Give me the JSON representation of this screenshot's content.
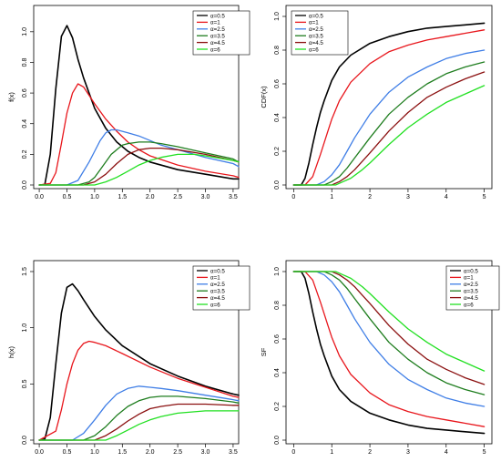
{
  "colors": {
    "black": "#000000",
    "red": "#e8161c",
    "blue": "#3f7ee6",
    "darkgreen": "#1e7d1e",
    "darkred": "#8b1010",
    "green": "#22e022"
  },
  "legend_entries": [
    {
      "label": "α=0.5",
      "color": "#000000"
    },
    {
      "label": "α=1",
      "color": "#e8161c"
    },
    {
      "label": "α=2.5",
      "color": "#3f7ee6"
    },
    {
      "label": "α=3.5",
      "color": "#1e7d1e"
    },
    {
      "label": "α=4.5",
      "color": "#8b1010"
    },
    {
      "label": "α=6",
      "color": "#22e022"
    }
  ],
  "chart_data": [
    {
      "type": "line",
      "title": "",
      "xlabel": "",
      "ylabel": "f(x)",
      "xlim": [
        -0.1,
        3.6
      ],
      "ylim": [
        0,
        1.1
      ],
      "xticks": [
        "0.0",
        "0.5",
        "1.0",
        "1.5",
        "2.0",
        "2.5",
        "3.0",
        "3.5"
      ],
      "yticks": [
        "0.0",
        "0.2",
        "0.4",
        "0.6",
        "0.8",
        "1.0"
      ],
      "legend": "top-right",
      "grid": false,
      "series": [
        {
          "name": "α=0.5",
          "color": "#000000",
          "x": [
            0,
            0.1,
            0.2,
            0.3,
            0.4,
            0.5,
            0.6,
            0.7,
            0.8,
            1.0,
            1.2,
            1.4,
            1.6,
            1.8,
            2.0,
            2.5,
            3.0,
            3.5,
            3.6
          ],
          "y": [
            0,
            0.003,
            0.2,
            0.63,
            0.97,
            1.04,
            0.96,
            0.82,
            0.7,
            0.5,
            0.37,
            0.28,
            0.22,
            0.18,
            0.15,
            0.1,
            0.07,
            0.04,
            0.04
          ]
        },
        {
          "name": "α=1",
          "color": "#e8161c",
          "x": [
            0,
            0.2,
            0.3,
            0.4,
            0.5,
            0.6,
            0.7,
            0.8,
            1.0,
            1.2,
            1.4,
            1.6,
            1.8,
            2.0,
            2.5,
            3.0,
            3.5,
            3.6
          ],
          "y": [
            0,
            0.01,
            0.08,
            0.27,
            0.47,
            0.6,
            0.66,
            0.64,
            0.53,
            0.43,
            0.35,
            0.28,
            0.23,
            0.19,
            0.13,
            0.09,
            0.06,
            0.05
          ]
        },
        {
          "name": "α=2.5",
          "color": "#3f7ee6",
          "x": [
            0,
            0.5,
            0.7,
            0.9,
            1.0,
            1.1,
            1.2,
            1.3,
            1.4,
            1.5,
            1.6,
            1.8,
            2.0,
            2.2,
            2.5,
            3.0,
            3.5,
            3.6
          ],
          "y": [
            0,
            0.0,
            0.03,
            0.15,
            0.22,
            0.29,
            0.34,
            0.36,
            0.36,
            0.35,
            0.34,
            0.32,
            0.29,
            0.26,
            0.23,
            0.18,
            0.14,
            0.12
          ]
        },
        {
          "name": "α=3.5",
          "color": "#1e7d1e",
          "x": [
            0,
            0.7,
            0.9,
            1.0,
            1.1,
            1.2,
            1.3,
            1.4,
            1.5,
            1.6,
            1.8,
            2.0,
            2.2,
            2.5,
            3.0,
            3.5,
            3.6
          ],
          "y": [
            0,
            0.0,
            0.02,
            0.05,
            0.1,
            0.15,
            0.2,
            0.23,
            0.26,
            0.27,
            0.28,
            0.28,
            0.27,
            0.25,
            0.21,
            0.17,
            0.15
          ]
        },
        {
          "name": "α=4.5",
          "color": "#8b1010",
          "x": [
            0,
            0.8,
            1.0,
            1.2,
            1.4,
            1.6,
            1.8,
            2.0,
            2.2,
            2.5,
            3.0,
            3.5,
            3.6
          ],
          "y": [
            0,
            0.0,
            0.02,
            0.07,
            0.14,
            0.2,
            0.23,
            0.24,
            0.24,
            0.23,
            0.2,
            0.16,
            0.15
          ]
        },
        {
          "name": "α=6",
          "color": "#22e022",
          "x": [
            0,
            1.0,
            1.2,
            1.4,
            1.6,
            1.8,
            2.0,
            2.2,
            2.5,
            2.8,
            3.0,
            3.5,
            3.6
          ],
          "y": [
            0,
            0.0,
            0.02,
            0.05,
            0.09,
            0.13,
            0.16,
            0.18,
            0.2,
            0.2,
            0.19,
            0.16,
            0.15
          ]
        }
      ]
    },
    {
      "type": "line",
      "title": "",
      "xlabel": "",
      "ylabel": "CDF(x)",
      "xlim": [
        -0.2,
        5.2
      ],
      "ylim": [
        0,
        1
      ],
      "xticks": [
        "0",
        "1",
        "2",
        "3",
        "4",
        "5"
      ],
      "yticks": [
        "0.0",
        "0.2",
        "0.4",
        "0.6",
        "0.8",
        "1.0"
      ],
      "legend": "top-left",
      "grid": false,
      "series": [
        {
          "name": "α=0.5",
          "color": "#000000",
          "x": [
            0,
            0.2,
            0.3,
            0.4,
            0.5,
            0.6,
            0.7,
            0.8,
            1.0,
            1.2,
            1.5,
            2.0,
            2.5,
            3.0,
            3.5,
            4.0,
            4.5,
            5.0
          ],
          "y": [
            0,
            0.0,
            0.04,
            0.13,
            0.24,
            0.34,
            0.43,
            0.5,
            0.62,
            0.7,
            0.77,
            0.84,
            0.88,
            0.91,
            0.93,
            0.94,
            0.95,
            0.96
          ]
        },
        {
          "name": "α=1",
          "color": "#e8161c",
          "x": [
            0,
            0.3,
            0.5,
            0.7,
            0.9,
            1.0,
            1.2,
            1.5,
            2.0,
            2.5,
            3.0,
            3.5,
            4.0,
            4.5,
            5.0
          ],
          "y": [
            0,
            0.0,
            0.05,
            0.18,
            0.32,
            0.39,
            0.5,
            0.61,
            0.72,
            0.79,
            0.83,
            0.86,
            0.88,
            0.9,
            0.92
          ]
        },
        {
          "name": "α=2.5",
          "color": "#3f7ee6",
          "x": [
            0,
            0.6,
            0.8,
            1.0,
            1.2,
            1.4,
            1.6,
            1.8,
            2.0,
            2.5,
            3.0,
            3.5,
            4.0,
            4.5,
            5.0
          ],
          "y": [
            0,
            0.0,
            0.02,
            0.06,
            0.12,
            0.2,
            0.28,
            0.35,
            0.42,
            0.55,
            0.64,
            0.7,
            0.75,
            0.78,
            0.8
          ]
        },
        {
          "name": "α=3.5",
          "color": "#1e7d1e",
          "x": [
            0,
            0.8,
            1.0,
            1.2,
            1.4,
            1.6,
            1.8,
            2.0,
            2.5,
            3.0,
            3.5,
            4.0,
            4.5,
            5.0
          ],
          "y": [
            0,
            0.0,
            0.02,
            0.05,
            0.1,
            0.16,
            0.22,
            0.28,
            0.42,
            0.52,
            0.6,
            0.66,
            0.7,
            0.73
          ]
        },
        {
          "name": "α=4.5",
          "color": "#8b1010",
          "x": [
            0,
            1.0,
            1.2,
            1.4,
            1.6,
            1.8,
            2.0,
            2.5,
            3.0,
            3.5,
            4.0,
            4.5,
            5.0
          ],
          "y": [
            0,
            0.0,
            0.02,
            0.05,
            0.09,
            0.14,
            0.19,
            0.32,
            0.43,
            0.52,
            0.58,
            0.63,
            0.67
          ]
        },
        {
          "name": "α=6",
          "color": "#22e022",
          "x": [
            0,
            1.1,
            1.3,
            1.5,
            1.8,
            2.0,
            2.5,
            3.0,
            3.5,
            4.0,
            4.5,
            5.0
          ],
          "y": [
            0,
            0.0,
            0.02,
            0.04,
            0.09,
            0.13,
            0.24,
            0.34,
            0.42,
            0.49,
            0.54,
            0.59
          ]
        }
      ]
    },
    {
      "type": "line",
      "title": "",
      "xlabel": "",
      "ylabel": "h(x)",
      "xlim": [
        -0.1,
        3.6
      ],
      "ylim": [
        0,
        1.5
      ],
      "xticks": [
        "0.0",
        "0.5",
        "1.0",
        "1.5",
        "2.0",
        "2.5",
        "3.0",
        "3.5"
      ],
      "yticks": [
        "0.0",
        "0.5",
        "1.0",
        "1.5"
      ],
      "legend": "top-right",
      "grid": false,
      "series": [
        {
          "name": "α=0.5",
          "color": "#000000",
          "x": [
            0,
            0.1,
            0.2,
            0.3,
            0.4,
            0.5,
            0.6,
            0.7,
            0.8,
            1.0,
            1.2,
            1.5,
            2.0,
            2.5,
            3.0,
            3.5,
            3.6
          ],
          "y": [
            0,
            0.01,
            0.2,
            0.68,
            1.13,
            1.36,
            1.39,
            1.33,
            1.25,
            1.1,
            0.98,
            0.84,
            0.68,
            0.57,
            0.48,
            0.41,
            0.4
          ]
        },
        {
          "name": "α=1",
          "color": "#e8161c",
          "x": [
            0,
            0.3,
            0.4,
            0.5,
            0.6,
            0.7,
            0.8,
            0.9,
            1.0,
            1.2,
            1.5,
            2.0,
            2.5,
            3.0,
            3.5,
            3.6
          ],
          "y": [
            0,
            0.08,
            0.27,
            0.5,
            0.68,
            0.8,
            0.86,
            0.88,
            0.87,
            0.84,
            0.77,
            0.65,
            0.55,
            0.47,
            0.39,
            0.38
          ]
        },
        {
          "name": "α=2.5",
          "color": "#3f7ee6",
          "x": [
            0,
            0.6,
            0.8,
            1.0,
            1.2,
            1.4,
            1.6,
            1.8,
            2.0,
            2.2,
            2.5,
            3.0,
            3.5,
            3.6
          ],
          "y": [
            0,
            0.0,
            0.06,
            0.18,
            0.31,
            0.41,
            0.46,
            0.48,
            0.47,
            0.46,
            0.44,
            0.4,
            0.36,
            0.35
          ]
        },
        {
          "name": "α=3.5",
          "color": "#1e7d1e",
          "x": [
            0,
            0.8,
            1.0,
            1.2,
            1.4,
            1.6,
            1.8,
            2.0,
            2.2,
            2.5,
            3.0,
            3.5,
            3.6
          ],
          "y": [
            0,
            0.0,
            0.04,
            0.12,
            0.22,
            0.3,
            0.35,
            0.38,
            0.39,
            0.39,
            0.37,
            0.34,
            0.33
          ]
        },
        {
          "name": "α=4.5",
          "color": "#8b1010",
          "x": [
            0,
            1.0,
            1.2,
            1.4,
            1.6,
            1.8,
            2.0,
            2.2,
            2.5,
            3.0,
            3.5,
            3.6
          ],
          "y": [
            0,
            0.0,
            0.04,
            0.1,
            0.17,
            0.23,
            0.28,
            0.3,
            0.32,
            0.32,
            0.31,
            0.31
          ]
        },
        {
          "name": "α=6",
          "color": "#22e022",
          "x": [
            0,
            1.2,
            1.4,
            1.6,
            1.8,
            2.0,
            2.2,
            2.5,
            3.0,
            3.5,
            3.6
          ],
          "y": [
            0,
            0.0,
            0.04,
            0.09,
            0.14,
            0.18,
            0.21,
            0.24,
            0.26,
            0.26,
            0.26
          ]
        }
      ]
    },
    {
      "type": "line",
      "title": "",
      "xlabel": "",
      "ylabel": "SF",
      "xlim": [
        -0.2,
        5.2
      ],
      "ylim": [
        0,
        1
      ],
      "xticks": [
        "0",
        "1",
        "2",
        "3",
        "4",
        "5"
      ],
      "yticks": [
        "0.0",
        "0.2",
        "0.4",
        "0.6",
        "0.8",
        "1.0"
      ],
      "legend": "top-right",
      "grid": false,
      "series": [
        {
          "name": "α=0.5",
          "color": "#000000",
          "x": [
            0,
            0.2,
            0.3,
            0.4,
            0.5,
            0.6,
            0.7,
            0.8,
            1.0,
            1.2,
            1.5,
            2.0,
            2.5,
            3.0,
            3.5,
            4.0,
            4.5,
            5.0
          ],
          "y": [
            1,
            1.0,
            0.96,
            0.87,
            0.76,
            0.66,
            0.57,
            0.5,
            0.38,
            0.3,
            0.23,
            0.16,
            0.12,
            0.09,
            0.07,
            0.06,
            0.05,
            0.04
          ]
        },
        {
          "name": "α=1",
          "color": "#e8161c",
          "x": [
            0,
            0.3,
            0.5,
            0.7,
            0.9,
            1.0,
            1.2,
            1.5,
            2.0,
            2.5,
            3.0,
            3.5,
            4.0,
            4.5,
            5.0
          ],
          "y": [
            1,
            1.0,
            0.95,
            0.82,
            0.68,
            0.61,
            0.5,
            0.39,
            0.28,
            0.21,
            0.17,
            0.14,
            0.12,
            0.1,
            0.08
          ]
        },
        {
          "name": "α=2.5",
          "color": "#3f7ee6",
          "x": [
            0,
            0.6,
            0.8,
            1.0,
            1.2,
            1.4,
            1.6,
            1.8,
            2.0,
            2.5,
            3.0,
            3.5,
            4.0,
            4.5,
            5.0
          ],
          "y": [
            1,
            1.0,
            0.98,
            0.94,
            0.88,
            0.8,
            0.72,
            0.65,
            0.58,
            0.45,
            0.36,
            0.3,
            0.25,
            0.22,
            0.2
          ]
        },
        {
          "name": "α=3.5",
          "color": "#1e7d1e",
          "x": [
            0,
            0.8,
            1.0,
            1.2,
            1.4,
            1.6,
            1.8,
            2.0,
            2.5,
            3.0,
            3.5,
            4.0,
            4.5,
            5.0
          ],
          "y": [
            1,
            1.0,
            0.98,
            0.95,
            0.9,
            0.84,
            0.78,
            0.72,
            0.58,
            0.48,
            0.4,
            0.34,
            0.3,
            0.27
          ]
        },
        {
          "name": "α=4.5",
          "color": "#8b1010",
          "x": [
            0,
            1.0,
            1.2,
            1.4,
            1.6,
            1.8,
            2.0,
            2.5,
            3.0,
            3.5,
            4.0,
            4.5,
            5.0
          ],
          "y": [
            1,
            1.0,
            0.98,
            0.95,
            0.91,
            0.86,
            0.81,
            0.68,
            0.57,
            0.48,
            0.42,
            0.37,
            0.33
          ]
        },
        {
          "name": "α=6",
          "color": "#22e022",
          "x": [
            0,
            1.1,
            1.3,
            1.5,
            1.8,
            2.0,
            2.5,
            3.0,
            3.5,
            4.0,
            4.5,
            5.0
          ],
          "y": [
            1,
            1.0,
            0.98,
            0.96,
            0.91,
            0.87,
            0.76,
            0.66,
            0.58,
            0.51,
            0.46,
            0.41
          ]
        }
      ]
    }
  ]
}
